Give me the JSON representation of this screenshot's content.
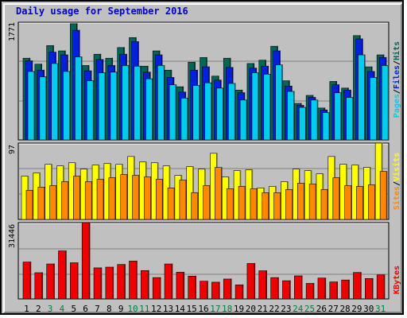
{
  "title": "Daily usage for September 2016",
  "colors": {
    "hits": "#006655",
    "files": "#0022dd",
    "pages": "#00ccee",
    "visits": "#ffff00",
    "sites": "#ff8800",
    "kbytes": "#ee0000",
    "background": "#c0c0c0",
    "weekday_label": "#000000",
    "weekend_label": "#008040"
  },
  "chart_data": [
    {
      "type": "bar",
      "panel": "hits-files-pages",
      "y_axis_label": "1771",
      "ylim": [
        0,
        1771
      ],
      "categories": [
        "1",
        "2",
        "3",
        "4",
        "5",
        "6",
        "7",
        "8",
        "9",
        "10",
        "11",
        "12",
        "13",
        "14",
        "15",
        "16",
        "17",
        "18",
        "19",
        "20",
        "21",
        "22",
        "23",
        "24",
        "25",
        "26",
        "27",
        "28",
        "29",
        "30",
        "31"
      ],
      "weekend_days": [
        "3",
        "4",
        "10",
        "11",
        "17",
        "18",
        "24",
        "25",
        "31"
      ],
      "legend": [
        {
          "label": "Hits",
          "color": "#006655"
        },
        {
          "label": "Files",
          "color": "#0022dd"
        },
        {
          "label": "Pages",
          "color": "#00ccee"
        }
      ],
      "series": [
        {
          "name": "Hits",
          "values": [
            1230,
            1140,
            1420,
            1340,
            1750,
            1120,
            1290,
            1230,
            1390,
            1540,
            1110,
            1340,
            1050,
            800,
            1170,
            1240,
            960,
            1230,
            750,
            1150,
            1200,
            1410,
            890,
            550,
            670,
            480,
            880,
            780,
            1570,
            1100,
            1280
          ]
        },
        {
          "name": "Files",
          "values": [
            1190,
            1050,
            1320,
            1280,
            1650,
            1040,
            1210,
            1120,
            1290,
            1480,
            1020,
            1280,
            940,
            720,
            1050,
            1100,
            900,
            1090,
            710,
            1080,
            1110,
            1340,
            810,
            520,
            640,
            450,
            830,
            750,
            1520,
            1030,
            1240
          ]
        },
        {
          "name": "Pages",
          "values": [
            1030,
            950,
            1150,
            1030,
            1250,
            890,
            1010,
            1020,
            1120,
            1110,
            920,
            1120,
            830,
            630,
            820,
            860,
            780,
            850,
            600,
            1010,
            990,
            1130,
            730,
            490,
            600,
            410,
            710,
            640,
            1280,
            940,
            1120
          ]
        }
      ]
    },
    {
      "type": "bar",
      "panel": "visits-sites",
      "y_axis_label": "97",
      "ylim": [
        0,
        97
      ],
      "legend": [
        {
          "label": "Visits",
          "color": "#ffff00"
        },
        {
          "label": "Sites",
          "color": "#ff8800"
        }
      ],
      "series": [
        {
          "name": "Visits",
          "values": [
            55,
            59,
            70,
            68,
            72,
            64,
            69,
            71,
            70,
            80,
            73,
            72,
            68,
            56,
            67,
            64,
            84,
            54,
            62,
            63,
            40,
            42,
            48,
            64,
            62,
            58,
            80,
            70,
            69,
            66,
            97
          ]
        },
        {
          "name": "Sites",
          "values": [
            37,
            41,
            43,
            48,
            55,
            48,
            51,
            53,
            57,
            56,
            54,
            51,
            40,
            50,
            34,
            43,
            66,
            39,
            42,
            39,
            34,
            34,
            38,
            46,
            45,
            38,
            53,
            43,
            42,
            44,
            61
          ]
        }
      ]
    },
    {
      "type": "bar",
      "panel": "kbytes",
      "y_axis_label": "31446",
      "ylim": [
        0,
        31446
      ],
      "legend": [
        {
          "label": "KBytes",
          "color": "#ee0000"
        }
      ],
      "series": [
        {
          "name": "KBytes",
          "values": [
            15200,
            10800,
            14400,
            19800,
            14900,
            31446,
            12800,
            13100,
            14200,
            15600,
            11700,
            8800,
            14400,
            11000,
            9400,
            7300,
            6900,
            8200,
            5800,
            14600,
            11600,
            8800,
            7500,
            9500,
            6400,
            8600,
            7000,
            7800,
            10900,
            8400,
            9900
          ]
        }
      ]
    }
  ]
}
